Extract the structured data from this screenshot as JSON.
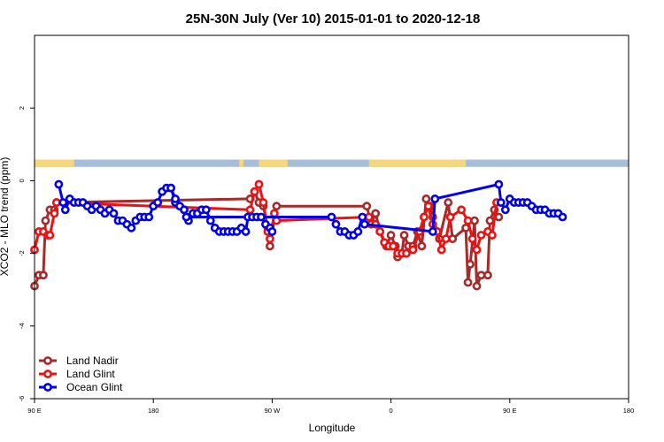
{
  "chart_data": {
    "type": "line",
    "title": "25N-30N July (Ver 10)   2015-01-01 to 2020-12-18",
    "xlabel": "Longitude",
    "ylabel": "XCO2 - MLO trend (ppm)",
    "xlim": [
      -90,
      180
    ],
    "ylim": [
      -6,
      4
    ],
    "x_ticks": [
      {
        "value": -90,
        "label": "90 E"
      },
      {
        "value": -36,
        "label": "180"
      },
      {
        "value": 18,
        "label": "90 W"
      },
      {
        "value": 72,
        "label": "0"
      },
      {
        "value": 126,
        "label": "90 E"
      },
      {
        "value": 180,
        "label": "180"
      }
    ],
    "y_ticks": [
      {
        "value": -6,
        "label": "-6"
      },
      {
        "value": -4,
        "label": "-4"
      },
      {
        "value": -2,
        "label": "-2"
      },
      {
        "value": 0,
        "label": "0"
      },
      {
        "value": 2,
        "label": "2"
      }
    ],
    "land_ocean_band": {
      "y_range": [
        0.38,
        0.58
      ],
      "land_color": "#f5d77a",
      "ocean_color": "#a7bedb",
      "land_segments": [
        [
          -90,
          -72
        ],
        [
          3,
          5
        ],
        [
          12,
          25
        ],
        [
          62,
          106
        ]
      ]
    },
    "legend_position": "bottom-left",
    "series": [
      {
        "name": "Land Nadir",
        "color": "#a52a2a",
        "points": [
          [
            -90,
            -2.9
          ],
          [
            -88,
            -2.6
          ],
          [
            -86,
            -2.6
          ],
          [
            -85,
            -1.1
          ],
          [
            -83,
            -0.8
          ],
          [
            -81,
            -0.8
          ],
          [
            -80,
            -0.6
          ],
          [
            8,
            -0.5
          ],
          [
            10,
            -0.3
          ],
          [
            12,
            -0.6
          ],
          [
            14,
            -0.7
          ],
          [
            16,
            -1.3
          ],
          [
            17,
            -1.8
          ],
          [
            20,
            -0.7
          ],
          [
            61,
            -0.7
          ],
          [
            63,
            -1.2
          ],
          [
            65,
            -0.9
          ],
          [
            67,
            -1.4
          ],
          [
            70,
            -1.8
          ],
          [
            72,
            -1.5
          ],
          [
            74,
            -1.8
          ],
          [
            75,
            -2.1
          ],
          [
            77,
            -2.0
          ],
          [
            78,
            -1.5
          ],
          [
            80,
            -1.8
          ],
          [
            82,
            -1.8
          ],
          [
            84,
            -1.4
          ],
          [
            86,
            -1.8
          ],
          [
            88,
            -0.5
          ],
          [
            90,
            -0.7
          ],
          [
            91,
            -1.0
          ],
          [
            93,
            -1.4
          ],
          [
            94,
            -1.6
          ],
          [
            98,
            -0.6
          ],
          [
            100,
            -1.6
          ],
          [
            106,
            -1.3
          ],
          [
            107,
            -2.8
          ],
          [
            108,
            -2.3
          ],
          [
            110,
            -1.1
          ],
          [
            111,
            -2.9
          ],
          [
            113,
            -2.6
          ],
          [
            116,
            -2.6
          ],
          [
            117,
            -1.1
          ],
          [
            119,
            -0.8
          ],
          [
            121,
            -1.0
          ]
        ]
      },
      {
        "name": "Land Glint",
        "color": "#ee1111",
        "points": [
          [
            -90,
            -1.9
          ],
          [
            -88,
            -1.4
          ],
          [
            -86,
            -1.4
          ],
          [
            -84,
            -1.5
          ],
          [
            -83,
            -1.5
          ],
          [
            -81,
            -0.9
          ],
          [
            -80,
            -0.6
          ],
          [
            8,
            -0.8
          ],
          [
            10,
            -0.3
          ],
          [
            12,
            -0.1
          ],
          [
            14,
            -0.6
          ],
          [
            16,
            -1.4
          ],
          [
            17,
            -1.6
          ],
          [
            19,
            -0.9
          ],
          [
            20,
            -1.1
          ],
          [
            62,
            -1.0
          ],
          [
            65,
            -1.2
          ],
          [
            67,
            -1.4
          ],
          [
            69,
            -1.7
          ],
          [
            71,
            -1.8
          ],
          [
            73,
            -1.8
          ],
          [
            75,
            -2.0
          ],
          [
            77,
            -2.0
          ],
          [
            79,
            -2.0
          ],
          [
            82,
            -1.9
          ],
          [
            85,
            -1.4
          ],
          [
            87,
            -1.0
          ],
          [
            89,
            -0.7
          ],
          [
            91,
            -1.2
          ],
          [
            93,
            -1.4
          ],
          [
            95,
            -1.9
          ],
          [
            97,
            -1.6
          ],
          [
            99,
            -1.0
          ],
          [
            104,
            -0.8
          ],
          [
            107,
            -1.1
          ],
          [
            109,
            -1.6
          ],
          [
            111,
            -1.9
          ],
          [
            113,
            -1.5
          ],
          [
            116,
            -1.4
          ],
          [
            118,
            -1.5
          ],
          [
            120,
            -0.6
          ]
        ]
      },
      {
        "name": "Ocean Glint",
        "color": "#0000ee",
        "points": [
          [
            -79,
            -0.1
          ],
          [
            -77,
            -0.6
          ],
          [
            -76,
            -0.8
          ],
          [
            -74,
            -0.5
          ],
          [
            -72,
            -0.6
          ],
          [
            -70,
            -0.6
          ],
          [
            -68,
            -0.6
          ],
          [
            -66,
            -0.7
          ],
          [
            -64,
            -0.8
          ],
          [
            -62,
            -0.7
          ],
          [
            -60,
            -0.8
          ],
          [
            -58,
            -0.9
          ],
          [
            -56,
            -0.8
          ],
          [
            -54,
            -0.9
          ],
          [
            -52,
            -1.1
          ],
          [
            -50,
            -1.1
          ],
          [
            -48,
            -1.2
          ],
          [
            -46,
            -1.3
          ],
          [
            -44,
            -1.1
          ],
          [
            -42,
            -1.0
          ],
          [
            -40,
            -1.0
          ],
          [
            -38,
            -1.0
          ],
          [
            -36,
            -0.7
          ],
          [
            -34,
            -0.6
          ],
          [
            -32,
            -0.3
          ],
          [
            -30,
            -0.2
          ],
          [
            -28,
            -0.2
          ],
          [
            -26,
            -0.6
          ],
          [
            -24,
            -0.7
          ],
          [
            -22,
            -0.8
          ],
          [
            -20,
            -1.1
          ],
          [
            -18,
            -0.9
          ],
          [
            -16,
            -0.9
          ],
          [
            -14,
            -0.8
          ],
          [
            -12,
            -0.8
          ],
          [
            -10,
            -1.1
          ],
          [
            -8,
            -1.3
          ],
          [
            -6,
            -1.4
          ],
          [
            -4,
            -1.4
          ],
          [
            -2,
            -1.4
          ],
          [
            0,
            -1.4
          ],
          [
            2,
            -1.4
          ],
          [
            4,
            -1.3
          ],
          [
            6,
            -1.4
          ],
          [
            7,
            -1.0
          ],
          [
            9,
            -1.0
          ],
          [
            11,
            -1.0
          ],
          [
            13,
            -1.0
          ],
          [
            15,
            -1.2
          ],
          [
            17,
            -1.3
          ],
          [
            18,
            -1.4
          ],
          [
            -28,
            -0.2
          ],
          [
            -26,
            -0.5
          ],
          [
            -24,
            -0.7
          ],
          [
            -22,
            -0.8
          ],
          [
            -21,
            -1.0
          ],
          [
            45,
            -1.0
          ],
          [
            47,
            -1.2
          ],
          [
            49,
            -1.4
          ],
          [
            51,
            -1.4
          ],
          [
            53,
            -1.5
          ],
          [
            55,
            -1.5
          ],
          [
            57,
            -1.4
          ],
          [
            59,
            -1.0
          ],
          [
            60,
            -1.2
          ],
          [
            91,
            -1.4
          ],
          [
            92,
            -0.5
          ],
          [
            121,
            -0.1
          ],
          [
            122,
            -0.6
          ],
          [
            124,
            -0.8
          ],
          [
            126,
            -0.5
          ],
          [
            128,
            -0.6
          ],
          [
            130,
            -0.6
          ],
          [
            132,
            -0.6
          ],
          [
            134,
            -0.6
          ],
          [
            136,
            -0.7
          ],
          [
            138,
            -0.8
          ],
          [
            140,
            -0.8
          ],
          [
            142,
            -0.8
          ],
          [
            144,
            -0.9
          ],
          [
            146,
            -0.9
          ],
          [
            148,
            -0.9
          ],
          [
            150,
            -1.0
          ]
        ]
      }
    ]
  }
}
